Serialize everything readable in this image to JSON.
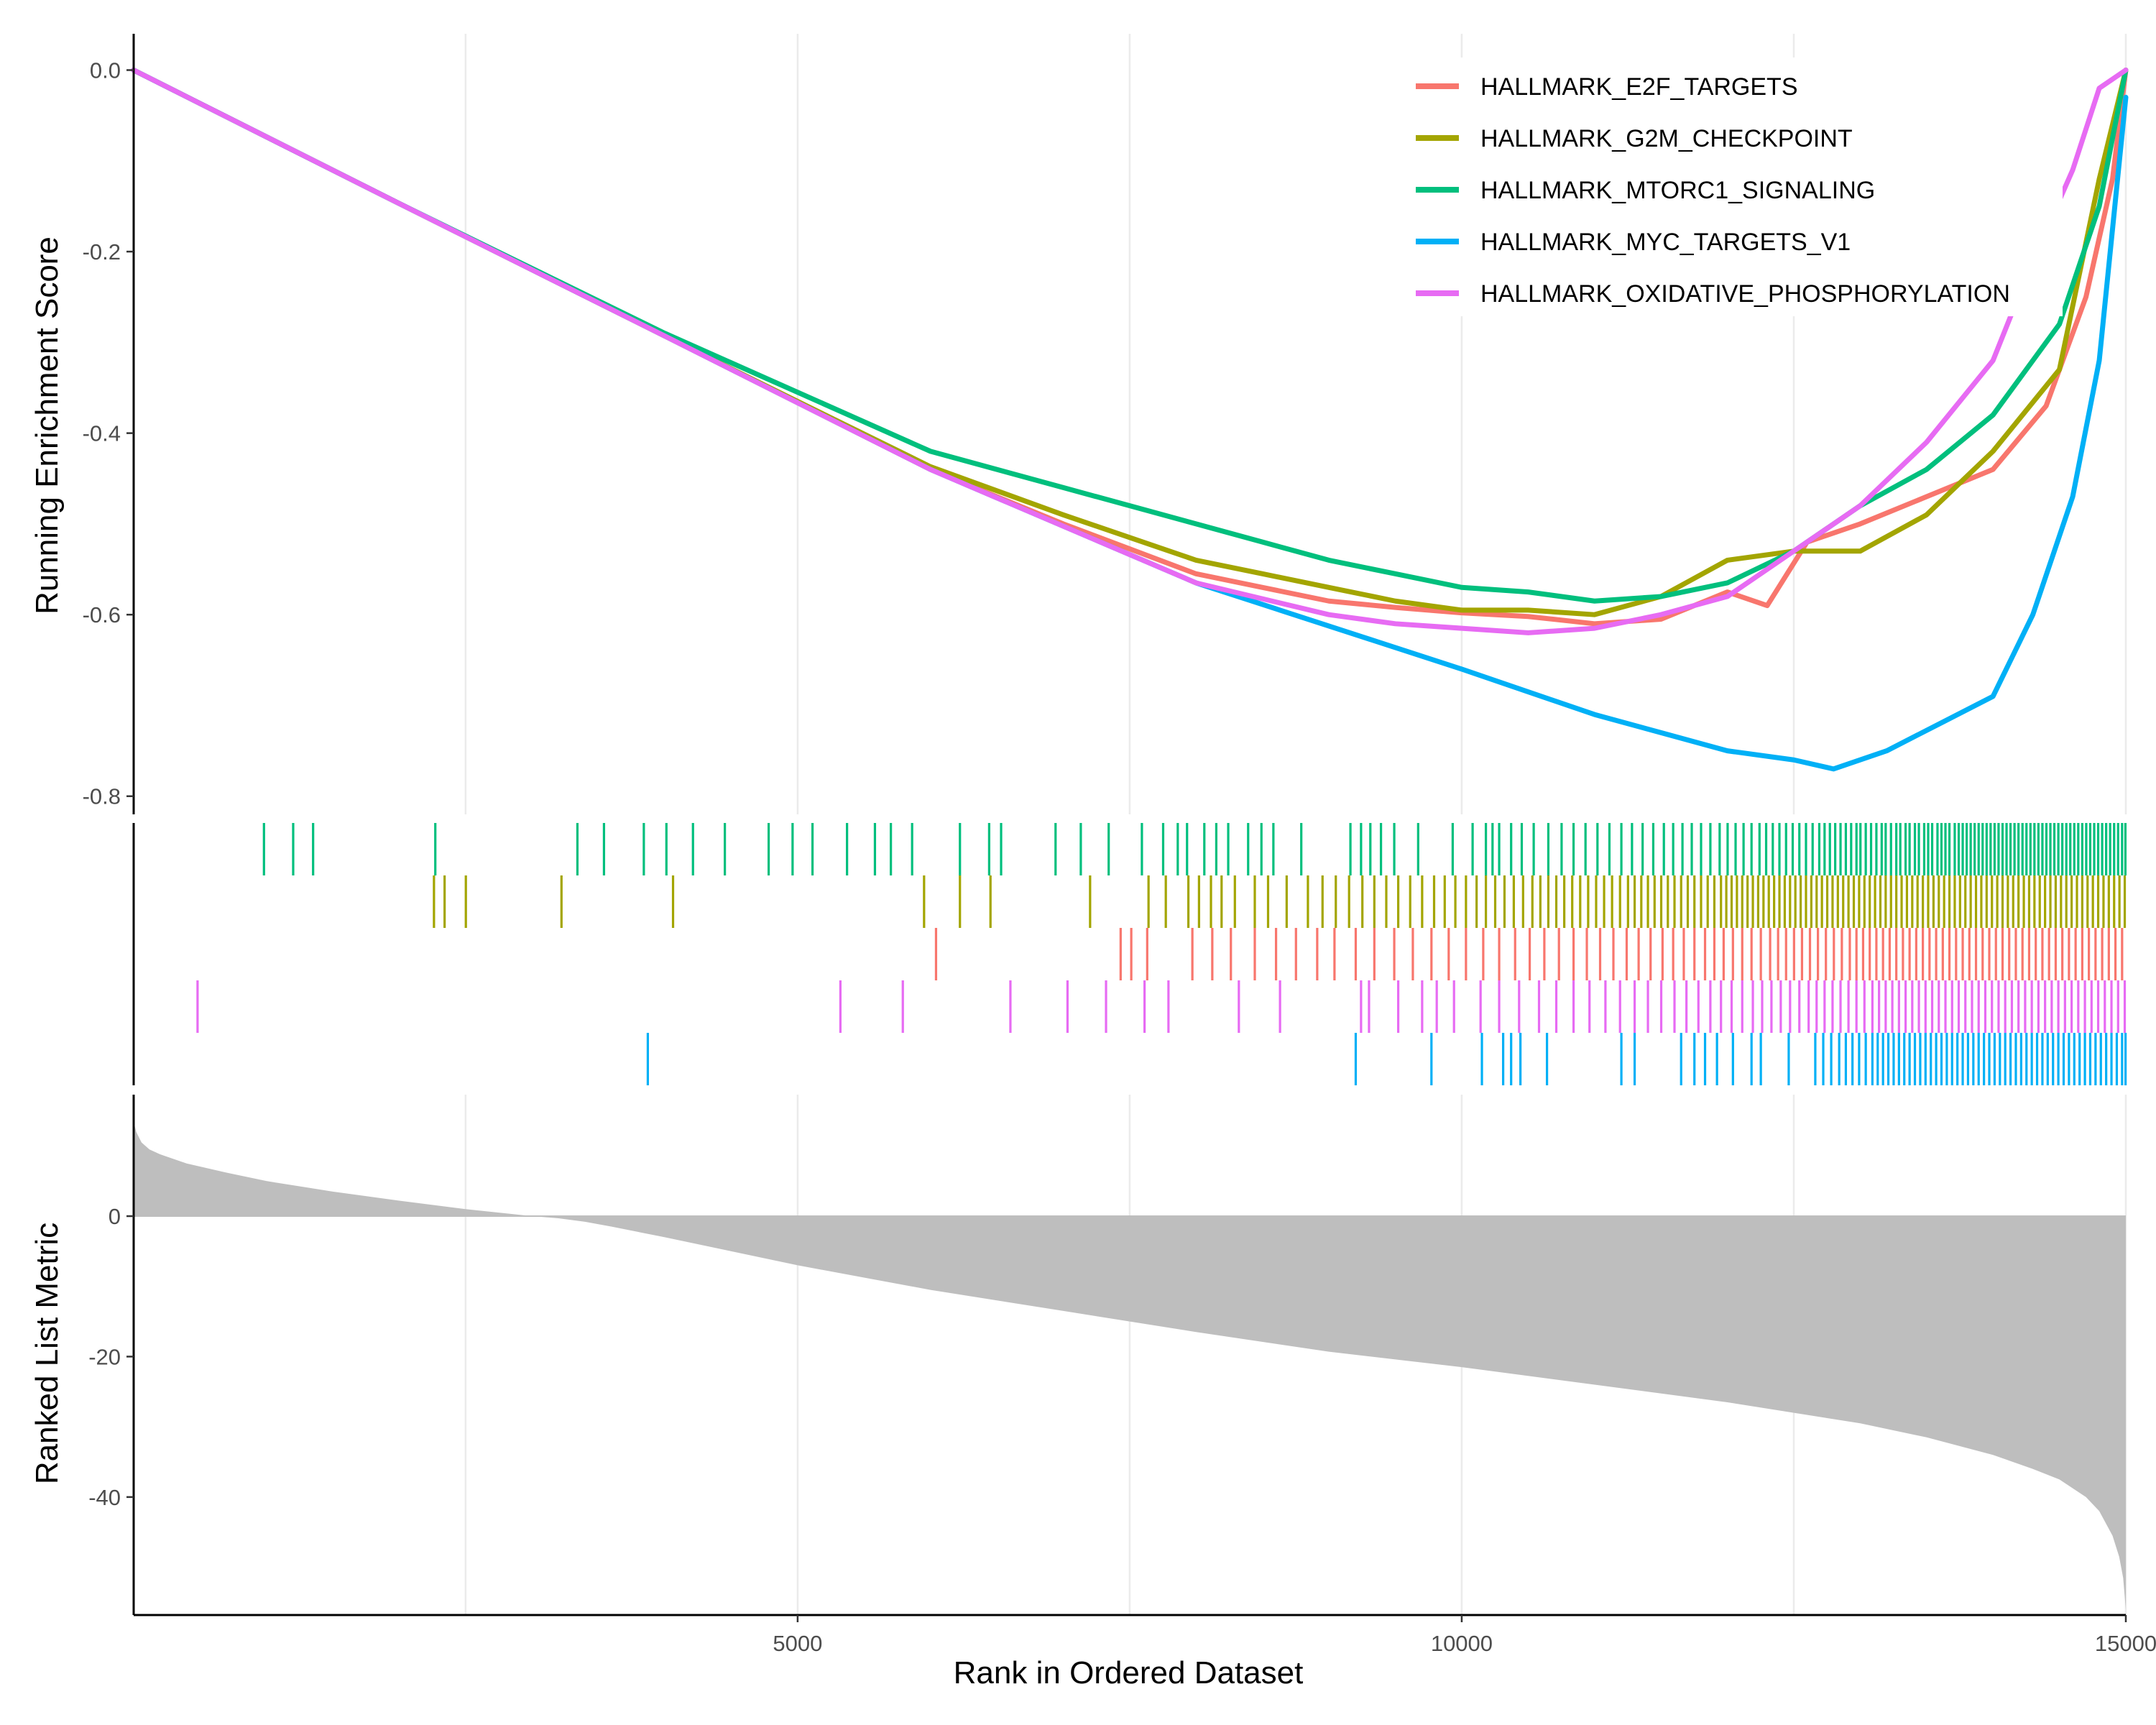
{
  "chart_data": {
    "type": "line",
    "x_range": [
      1,
      15000
    ],
    "shared_x_ticks": [
      5000,
      10000,
      15000
    ],
    "xlabel": "Rank in Ordered Dataset",
    "legend_position": "top-right",
    "grid": "vertical-only",
    "panels": {
      "enrichment": {
        "ylabel": "Running Enrichment Score",
        "ylim": [
          -0.82,
          0.04
        ],
        "y_ticks": [
          "0.0",
          "-0.2",
          "-0.4",
          "-0.6",
          "-0.8"
        ],
        "y_tick_values": [
          0.0,
          -0.2,
          -0.4,
          -0.6,
          -0.8
        ],
        "series": [
          {
            "name": "HALLMARK_E2F_TARGETS",
            "color": "#F8766D",
            "x": [
              0,
              2000,
              4000,
              6000,
              7000,
              8000,
              8500,
              9000,
              9500,
              10000,
              10500,
              11000,
              11500,
              12000,
              12300,
              12600,
              13000,
              13500,
              14000,
              14400,
              14700,
              14900,
              15000
            ],
            "y": [
              0.0,
              -0.147,
              -0.293,
              -0.44,
              -0.5,
              -0.555,
              -0.57,
              -0.585,
              -0.592,
              -0.598,
              -0.602,
              -0.61,
              -0.605,
              -0.575,
              -0.59,
              -0.52,
              -0.5,
              -0.47,
              -0.44,
              -0.37,
              -0.25,
              -0.12,
              0.0
            ]
          },
          {
            "name": "HALLMARK_G2M_CHECKPOINT",
            "color": "#A3A500",
            "x": [
              0,
              2000,
              4000,
              6000,
              7000,
              8000,
              8500,
              9000,
              9500,
              10000,
              10500,
              11000,
              11500,
              12000,
              12500,
              13000,
              13500,
              14000,
              14500,
              14800,
              15000
            ],
            "y": [
              0.0,
              -0.147,
              -0.293,
              -0.437,
              -0.49,
              -0.54,
              -0.555,
              -0.57,
              -0.585,
              -0.595,
              -0.595,
              -0.6,
              -0.58,
              -0.54,
              -0.53,
              -0.53,
              -0.49,
              -0.42,
              -0.33,
              -0.12,
              0.0
            ]
          },
          {
            "name": "HALLMARK_MTORC1_SIGNALING",
            "color": "#00BF7D",
            "x": [
              0,
              2000,
              4000,
              6000,
              7000,
              8000,
              8500,
              9000,
              9500,
              10000,
              10500,
              11000,
              11500,
              12000,
              12500,
              13000,
              13500,
              14000,
              14500,
              14800,
              15000
            ],
            "y": [
              0.0,
              -0.147,
              -0.29,
              -0.42,
              -0.46,
              -0.5,
              -0.52,
              -0.54,
              -0.555,
              -0.57,
              -0.575,
              -0.585,
              -0.58,
              -0.565,
              -0.53,
              -0.48,
              -0.44,
              -0.38,
              -0.28,
              -0.15,
              0.0
            ]
          },
          {
            "name": "HALLMARK_MYC_TARGETS_V1",
            "color": "#00B0F6",
            "x": [
              0,
              2000,
              4000,
              6000,
              8000,
              10000,
              11000,
              12000,
              12500,
              12800,
              13200,
              13600,
              14000,
              14300,
              14600,
              14800,
              15000
            ],
            "y": [
              0.0,
              -0.147,
              -0.293,
              -0.44,
              -0.565,
              -0.66,
              -0.71,
              -0.75,
              -0.76,
              -0.77,
              -0.75,
              -0.72,
              -0.69,
              -0.6,
              -0.47,
              -0.32,
              -0.03
            ]
          },
          {
            "name": "HALLMARK_OXIDATIVE_PHOSPHORYLATION",
            "color": "#E76BF3",
            "x": [
              0,
              2000,
              4000,
              6000,
              8000,
              9000,
              9500,
              10000,
              10500,
              11000,
              11500,
              12000,
              12500,
              13000,
              13500,
              14000,
              14300,
              14600,
              14800,
              15000
            ],
            "y": [
              0.0,
              -0.147,
              -0.293,
              -0.44,
              -0.565,
              -0.6,
              -0.61,
              -0.615,
              -0.62,
              -0.615,
              -0.6,
              -0.58,
              -0.53,
              -0.48,
              -0.41,
              -0.32,
              -0.21,
              -0.11,
              -0.02,
              0.0
            ]
          }
        ]
      },
      "hits": {
        "rows": [
          {
            "name": "HALLMARK_MTORC1_SIGNALING",
            "color": "#00BF7D",
            "hits": [
              982,
              1202,
              1352,
              2272,
              3342,
              3542,
              3842,
              4012,
              4212,
              4452,
              4782,
              4962,
              5112,
              5372,
              5582,
              5702,
              5862,
              6222,
              6442,
              6532,
              6942,
              7132,
              7342,
              7592,
              7752,
              7862,
              7932,
              8062,
              8152,
              8242,
              8392,
              8492,
              8582,
              8792,
              9162,
              9242,
              9312,
              9392,
              9492,
              9672,
              9932,
              10082,
              10182,
              10232,
              10282,
              10372,
              10452,
              10542,
              10652,
              10752,
              10842,
              10932,
              11022,
              11112,
              11202,
              11282,
              11362,
              11442,
              11522,
              11592,
              11662,
              11732,
              11802,
              11872,
              11942,
              12002,
              12062,
              12122,
              12182,
              12242,
              12292,
              12342,
              12392,
              12442,
              12492,
              12542,
              12592,
              12642,
              12692,
              12732,
              12772,
              12812,
              12852,
              12892,
              12932,
              12972,
              13002,
              13042,
              13082,
              13122,
              13162,
              13192,
              13232,
              13272,
              13302,
              13342,
              13372,
              13412,
              13442,
              13482,
              13512,
              13542,
              13582,
              13612,
              13642,
              13672,
              13712,
              13742,
              13772,
              13802,
              13832,
              13862,
              13892,
              13922,
              13952,
              13982,
              14012,
              14042,
              14072,
              14102,
              14132,
              14162,
              14192,
              14222,
              14252,
              14282,
              14312,
              14342,
              14372,
              14402,
              14432,
              14462,
              14492,
              14522,
              14552,
              14582,
              14612,
              14642,
              14672,
              14702,
              14732,
              14762,
              14792,
              14822,
              14852,
              14882,
              14912,
              14942,
              14972,
              14997
            ]
          },
          {
            "name": "HALLMARK_G2M_CHECKPOINT",
            "color": "#A3A500",
            "hits": [
              2262,
              2342,
              2502,
              3222,
              4062,
              5952,
              6222,
              6452,
              7202,
              7642,
              7772,
              7942,
              8022,
              8112,
              8192,
              8292,
              8442,
              8542,
              8682,
              8842,
              8952,
              9052,
              9152,
              9252,
              9342,
              9432,
              9522,
              9612,
              9702,
              9792,
              9872,
              9952,
              10032,
              10112,
              10182,
              10252,
              10322,
              10392,
              10462,
              10532,
              10592,
              10652,
              10712,
              10772,
              10832,
              10892,
              10952,
              11012,
              11072,
              11132,
              11192,
              11252,
              11302,
              11352,
              11402,
              11452,
              11502,
              11552,
              11602,
              11652,
              11702,
              11752,
              11802,
              11852,
              11902,
              11952,
              11992,
              12032,
              12072,
              12112,
              12152,
              12192,
              12232,
              12272,
              12312,
              12352,
              12392,
              12432,
              12472,
              12512,
              12552,
              12592,
              12632,
              12672,
              12712,
              12752,
              12792,
              12832,
              12872,
              12912,
              12952,
              12992,
              13032,
              13072,
              13112,
              13152,
              13192,
              13232,
              13272,
              13312,
              13352,
              13392,
              13432,
              13472,
              13512,
              13552,
              13592,
              13632,
              13672,
              13712,
              13752,
              13792,
              13832,
              13872,
              13912,
              13952,
              13992,
              14032,
              14072,
              14112,
              14152,
              14192,
              14232,
              14272,
              14312,
              14352,
              14392,
              14432,
              14472,
              14512,
              14552,
              14592,
              14632,
              14672,
              14712,
              14752,
              14792,
              14832,
              14872,
              14912,
              14952,
              14992
            ]
          },
          {
            "name": "HALLMARK_E2F_TARGETS",
            "color": "#F8766D",
            "hits": [
              6042,
              7432,
              7512,
              7632,
              7972,
              8122,
              8262,
              8442,
              8602,
              8752,
              8912,
              9042,
              9202,
              9342,
              9492,
              9632,
              9772,
              9902,
              10032,
              10162,
              10282,
              10402,
              10512,
              10622,
              10732,
              10842,
              10942,
              11042,
              11142,
              11242,
              11332,
              11422,
              11512,
              11592,
              11672,
              11752,
              11832,
              11902,
              11972,
              12042,
              12112,
              12182,
              12252,
              12322,
              12382,
              12442,
              12502,
              12562,
              12622,
              12682,
              12742,
              12802,
              12862,
              12922,
              12972,
              13022,
              13072,
              13122,
              13172,
              13222,
              13272,
              13322,
              13372,
              13422,
              13472,
              13522,
              13572,
              13622,
              13672,
              13722,
              13772,
              13822,
              13872,
              13922,
              13972,
              14022,
              14072,
              14122,
              14172,
              14222,
              14272,
              14322,
              14372,
              14422,
              14472,
              14522,
              14572,
              14622,
              14672,
              14722,
              14772,
              14822,
              14872,
              14922,
              14972
            ]
          },
          {
            "name": "HALLMARK_OXIDATIVE_PHOSPHORYLATION",
            "color": "#E76BF3",
            "hits": [
              482,
              5322,
              5792,
              6602,
              7032,
              7322,
              7612,
              7792,
              8322,
              8632,
              9242,
              9302,
              9522,
              9702,
              9812,
              9942,
              10142,
              10282,
              10432,
              10582,
              10712,
              10842,
              10962,
              11082,
              11192,
              11302,
              11402,
              11502,
              11602,
              11692,
              11782,
              11872,
              11952,
              12032,
              12112,
              12192,
              12262,
              12332,
              12402,
              12472,
              12542,
              12612,
              12672,
              12732,
              12792,
              12852,
              12912,
              12972,
              13032,
              13092,
              13142,
              13192,
              13242,
              13292,
              13342,
              13392,
              13442,
              13492,
              13542,
              13592,
              13642,
              13692,
              13742,
              13792,
              13842,
              13892,
              13942,
              13992,
              14042,
              14092,
              14142,
              14192,
              14242,
              14292,
              14342,
              14392,
              14442,
              14492,
              14542,
              14592,
              14642,
              14692,
              14742,
              14792,
              14842,
              14892,
              14942,
              14992
            ]
          },
          {
            "name": "HALLMARK_MYC_TARGETS_V1",
            "color": "#00B0F6",
            "hits": [
              3872,
              9202,
              9772,
              10152,
              10312,
              10372,
              10442,
              10642,
              11202,
              11302,
              11652,
              11752,
              11832,
              11922,
              12042,
              12182,
              12252,
              12462,
              12662,
              12722,
              12782,
              12842,
              12892,
              12942,
              12992,
              13042,
              13092,
              13132,
              13172,
              13212,
              13252,
              13292,
              13332,
              13372,
              13412,
              13452,
              13492,
              13532,
              13572,
              13612,
              13652,
              13692,
              13732,
              13772,
              13812,
              13852,
              13892,
              13932,
              13972,
              14012,
              14052,
              14092,
              14132,
              14172,
              14212,
              14252,
              14292,
              14332,
              14372,
              14412,
              14452,
              14492,
              14532,
              14572,
              14612,
              14652,
              14692,
              14732,
              14772,
              14812,
              14852,
              14892,
              14932,
              14972,
              14998
            ]
          }
        ]
      },
      "ranked_metric": {
        "ylabel": "Ranked List Metric",
        "ylim": [
          -56.8,
          17.3
        ],
        "y_ticks": [
          "0",
          "-20",
          "-40"
        ],
        "y_tick_values": [
          0,
          -20,
          -40
        ],
        "fill_color": "#BEBEBE",
        "x": [
          0,
          20,
          60,
          120,
          200,
          400,
          700,
          1000,
          1500,
          2000,
          2500,
          3000,
          3200,
          3400,
          3600,
          4000,
          4500,
          5000,
          6000,
          7000,
          8000,
          9000,
          10000,
          11000,
          12000,
          13000,
          13500,
          14000,
          14300,
          14500,
          14700,
          14800,
          14900,
          14950,
          14980,
          15000
        ],
        "y": [
          13.5,
          12.0,
          10.5,
          9.5,
          8.8,
          7.5,
          6.2,
          5.0,
          3.5,
          2.2,
          1.0,
          0.0,
          -0.3,
          -0.8,
          -1.5,
          -3.0,
          -5.0,
          -7.0,
          -10.5,
          -13.5,
          -16.5,
          -19.3,
          -21.5,
          -24.0,
          -26.5,
          -29.5,
          -31.5,
          -34.0,
          -36.0,
          -37.5,
          -40.0,
          -42.0,
          -45.5,
          -48.5,
          -51.5,
          -56.0
        ]
      }
    }
  }
}
